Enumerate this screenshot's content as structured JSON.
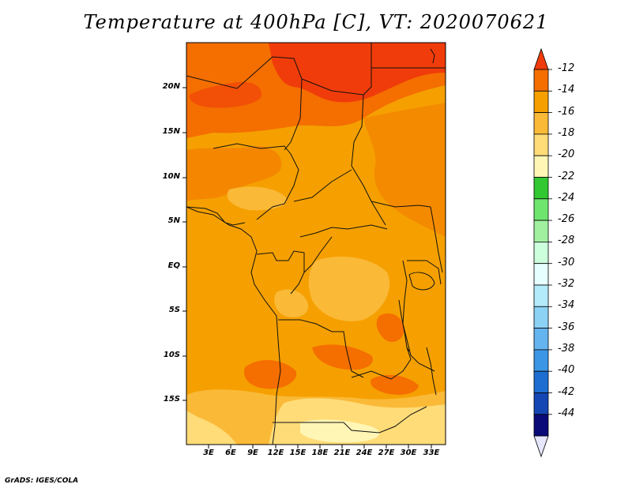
{
  "title": "Temperature at 400hPa [C], VT: 2020070621",
  "credit": "GrADS: IGES/COLA",
  "map": {
    "variable": "Temperature",
    "level": "400hPa",
    "units": "C",
    "valid_time": "2020070621",
    "lon_range": [
      0,
      35
    ],
    "lat_range": [
      -20,
      25
    ],
    "lat_ticks": [
      "20N",
      "15N",
      "10N",
      "5N",
      "EQ",
      "5S",
      "10S",
      "15S"
    ],
    "lon_ticks": [
      "3E",
      "6E",
      "9E",
      "12E",
      "15E",
      "18E",
      "21E",
      "24E",
      "27E",
      "30E",
      "33E"
    ]
  },
  "colorbar": {
    "levels": [
      "-12",
      "-14",
      "-16",
      "-18",
      "-20",
      "-22",
      "-24",
      "-26",
      "-28",
      "-30",
      "-32",
      "-34",
      "-36",
      "-38",
      "-40",
      "-42",
      "-44"
    ],
    "colors": [
      "#f03c0a",
      "#f56e00",
      "#f5a000",
      "#fab937",
      "#ffdc78",
      "#fff5b4",
      "#32c832",
      "#6ee66e",
      "#a0f0a0",
      "#ccffdc",
      "#e6ffff",
      "#b4ebfa",
      "#8cd2f5",
      "#64b4f0",
      "#3c96e6",
      "#1e6ed2",
      "#1446b4",
      "#0a0a78",
      "#e6e6ff"
    ]
  }
}
